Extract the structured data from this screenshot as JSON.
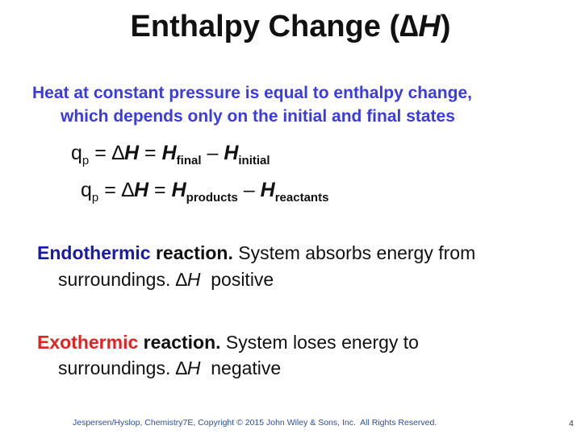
{
  "title": {
    "text": "Enthalpy Change (",
    "delta": "∆",
    "H": "H",
    "close": ")"
  },
  "intro": {
    "line1": "Heat at constant pressure  is equal to enthalpy change,",
    "line2": "which depends only on the initial and final states"
  },
  "equations": [
    {
      "q": "q",
      "q_sub": "p",
      "eq1": " = ∆",
      "H": "H",
      "eq2": " = ",
      "H1": "H",
      "sub1": "final",
      "minus": " – ",
      "H2": "H",
      "sub2": "initial"
    },
    {
      "q": "q",
      "q_sub": "p",
      "eq1": " = ∆",
      "H": "H",
      "eq2": " = ",
      "H1": "H",
      "sub1": "products",
      "minus": " – ",
      "H2": "H",
      "sub2": "reactants"
    }
  ],
  "endothermic": {
    "term": "Endothermic",
    "reaction": " reaction.",
    "text": " System absorbs energy from",
    "line2": "surroundings. ∆",
    "H": "H",
    "sign": "  positive"
  },
  "exothermic": {
    "term": "Exothermic",
    "reaction": " reaction.",
    "text": " System loses energy to",
    "line2": "surroundings. ∆",
    "H": "H",
    "sign": "  negative"
  },
  "footer": {
    "credit": "Jespersen/Hyslop, Chemistry7E, Copyright © 2015 John Wiley & Sons, Inc.  All Rights Reserved.",
    "page": "4"
  },
  "colors": {
    "intro": "#3b3be6",
    "endothermic": "#1a1aa8",
    "exothermic": "#e32222",
    "footer": "#2c4fa8"
  }
}
